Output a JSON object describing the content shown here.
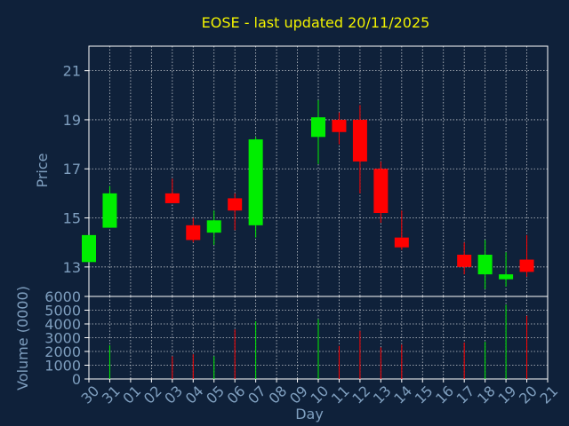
{
  "title": "EOSE - last updated 20/11/2025",
  "colors": {
    "background": "#0f213a",
    "text_title": "#f2f200",
    "axis_text": "#7f9fbf",
    "axis_line": "#ffffff",
    "grid": "#ffffff",
    "up": "#00ee00",
    "down": "#ff0000"
  },
  "chart_data": [
    {
      "type": "candlestick",
      "ylabel": "Price",
      "ylim": [
        11.8,
        22
      ],
      "yticks": [
        13,
        15,
        17,
        19,
        21
      ],
      "grid": true,
      "x": [
        "30",
        "31",
        "01",
        "02",
        "03",
        "04",
        "05",
        "06",
        "07",
        "08",
        "09",
        "10",
        "11",
        "12",
        "13",
        "14",
        "15",
        "16",
        "17",
        "18",
        "19",
        "20",
        "21"
      ],
      "candles": [
        {
          "day": "30",
          "open": 13.2,
          "high": 14.3,
          "low": 13.2,
          "close": 14.3
        },
        {
          "day": "31",
          "open": 14.6,
          "high": 16.3,
          "low": 14.6,
          "close": 16.0
        },
        {
          "day": "03",
          "open": 16.0,
          "high": 16.6,
          "low": 15.6,
          "close": 15.6
        },
        {
          "day": "04",
          "open": 14.7,
          "high": 15.0,
          "low": 14.0,
          "close": 14.1
        },
        {
          "day": "05",
          "open": 14.4,
          "high": 15.3,
          "low": 13.9,
          "close": 14.9
        },
        {
          "day": "06",
          "open": 15.8,
          "high": 16.0,
          "low": 14.5,
          "close": 15.3
        },
        {
          "day": "07",
          "open": 14.7,
          "high": 18.3,
          "low": 14.2,
          "close": 18.2
        },
        {
          "day": "10",
          "open": 18.3,
          "high": 19.8,
          "low": 17.2,
          "close": 19.1
        },
        {
          "day": "11",
          "open": 19.0,
          "high": 19.3,
          "low": 18.0,
          "close": 18.5
        },
        {
          "day": "12",
          "open": 19.0,
          "high": 19.6,
          "low": 16.0,
          "close": 17.3
        },
        {
          "day": "13",
          "open": 17.0,
          "high": 17.3,
          "low": 14.8,
          "close": 15.2
        },
        {
          "day": "14",
          "open": 14.2,
          "high": 15.3,
          "low": 13.7,
          "close": 13.8
        },
        {
          "day": "17",
          "open": 13.5,
          "high": 14.0,
          "low": 12.7,
          "close": 13.0
        },
        {
          "day": "18",
          "open": 12.7,
          "high": 14.1,
          "low": 12.1,
          "close": 13.5
        },
        {
          "day": "19",
          "open": 12.5,
          "high": 13.6,
          "low": 12.2,
          "close": 12.7
        },
        {
          "day": "20",
          "open": 13.3,
          "high": 14.3,
          "low": 12.6,
          "close": 12.8
        }
      ]
    },
    {
      "type": "bar",
      "ylabel": "Volume (0000)",
      "xlabel": "Day",
      "ylim": [
        0,
        6000
      ],
      "yticks": [
        0,
        1000,
        2000,
        3000,
        4000,
        5000,
        6000
      ],
      "grid": true,
      "x": [
        "30",
        "31",
        "01",
        "02",
        "03",
        "04",
        "05",
        "06",
        "07",
        "08",
        "09",
        "10",
        "11",
        "12",
        "13",
        "14",
        "15",
        "16",
        "17",
        "18",
        "19",
        "20",
        "21"
      ],
      "values": [
        {
          "day": "31",
          "volume": 2450,
          "direction": "up"
        },
        {
          "day": "03",
          "volume": 1650,
          "direction": "down"
        },
        {
          "day": "04",
          "volume": 1800,
          "direction": "down"
        },
        {
          "day": "05",
          "volume": 1650,
          "direction": "up"
        },
        {
          "day": "06",
          "volume": 3600,
          "direction": "down"
        },
        {
          "day": "07",
          "volume": 4200,
          "direction": "up"
        },
        {
          "day": "10",
          "volume": 4350,
          "direction": "up"
        },
        {
          "day": "11",
          "volume": 2400,
          "direction": "down"
        },
        {
          "day": "12",
          "volume": 3500,
          "direction": "down"
        },
        {
          "day": "13",
          "volume": 2300,
          "direction": "down"
        },
        {
          "day": "14",
          "volume": 2500,
          "direction": "down"
        },
        {
          "day": "17",
          "volume": 2650,
          "direction": "down"
        },
        {
          "day": "18",
          "volume": 2700,
          "direction": "up"
        },
        {
          "day": "19",
          "volume": 5400,
          "direction": "up"
        },
        {
          "day": "20",
          "volume": 4600,
          "direction": "down"
        }
      ]
    }
  ]
}
